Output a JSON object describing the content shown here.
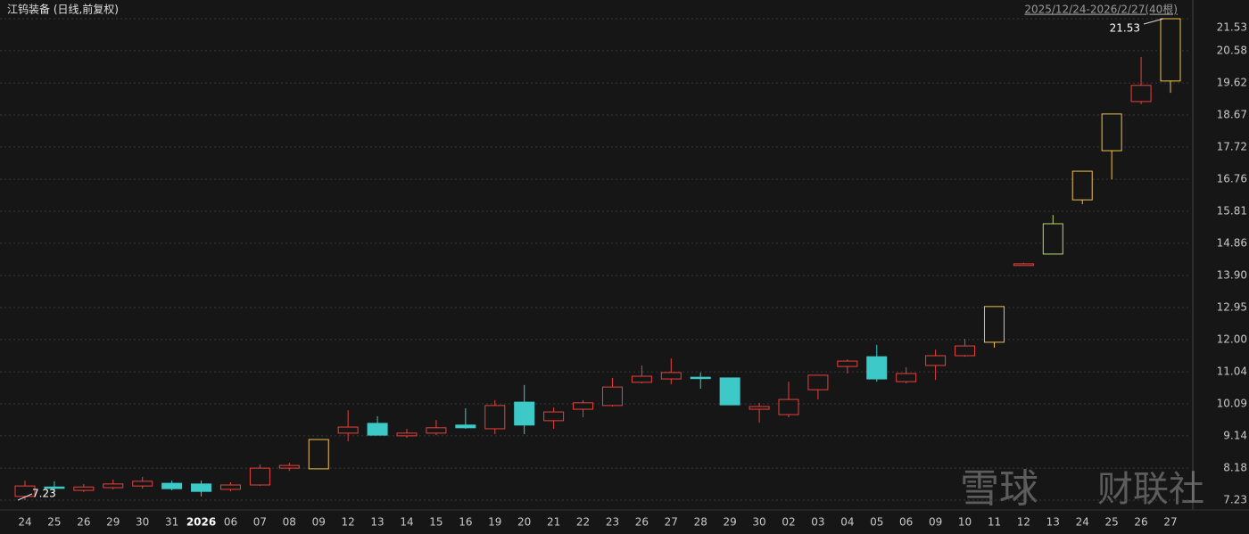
{
  "chart_data": {
    "type": "candlestick",
    "title": "江钨装备 (日线,前复权)",
    "range_label": "2025/12/24-2026/2/27(40根)",
    "watermark": [
      "雪球",
      "财联社"
    ],
    "categories": [
      "24",
      "25",
      "26",
      "29",
      "30",
      "31",
      "2026",
      "06",
      "07",
      "08",
      "09",
      "12",
      "13",
      "14",
      "15",
      "16",
      "19",
      "20",
      "21",
      "22",
      "23",
      "26",
      "27",
      "28",
      "29",
      "30",
      "02",
      "03",
      "04",
      "05",
      "06",
      "09",
      "10",
      "11",
      "12",
      "13",
      "24",
      "25",
      "26",
      "27"
    ],
    "open": [
      7.34,
      7.62,
      7.52,
      7.6,
      7.65,
      7.73,
      7.71,
      7.55,
      7.68,
      8.18,
      8.16,
      9.22,
      9.51,
      9.14,
      9.22,
      9.46,
      9.35,
      10.14,
      9.59,
      9.93,
      10.04,
      10.73,
      10.83,
      10.88,
      10.86,
      9.93,
      9.77,
      10.51,
      11.2,
      11.49,
      10.75,
      11.23,
      11.52,
      11.92,
      14.2,
      14.54,
      16.15,
      17.61,
      19.07,
      19.68
    ],
    "high": [
      7.81,
      7.79,
      7.71,
      7.84,
      7.92,
      7.81,
      7.81,
      7.76,
      8.29,
      8.34,
      9.03,
      9.9,
      9.72,
      9.35,
      9.61,
      9.96,
      10.2,
      10.65,
      9.98,
      10.2,
      10.86,
      11.23,
      11.44,
      11.02,
      10.86,
      10.12,
      10.75,
      10.94,
      11.41,
      11.84,
      11.18,
      11.7,
      12.02,
      12.98,
      14.28,
      15.7,
      17.0,
      18.7,
      20.39,
      21.53
    ],
    "low": [
      7.23,
      7.47,
      7.47,
      7.55,
      7.57,
      7.52,
      7.34,
      7.49,
      7.65,
      8.1,
      8.16,
      8.98,
      9.16,
      9.08,
      9.16,
      9.35,
      9.19,
      9.19,
      9.35,
      9.69,
      10.01,
      10.7,
      10.67,
      10.54,
      10.06,
      9.53,
      9.69,
      10.22,
      10.99,
      10.75,
      10.7,
      10.8,
      11.49,
      11.76,
      14.2,
      14.54,
      16.02,
      16.76,
      18.99,
      19.33
    ],
    "close": [
      7.65,
      7.58,
      7.62,
      7.71,
      7.79,
      7.57,
      7.49,
      7.68,
      8.18,
      8.26,
      9.03,
      9.4,
      9.16,
      9.22,
      9.38,
      9.38,
      10.04,
      9.46,
      9.85,
      10.12,
      10.59,
      10.91,
      11.02,
      10.86,
      10.06,
      10.01,
      10.22,
      10.94,
      11.36,
      10.83,
      10.99,
      11.52,
      11.81,
      12.98,
      14.25,
      15.44,
      17.0,
      18.7,
      19.55,
      21.53
    ],
    "colors": [
      "#e8413c",
      "#3ec9c9",
      "#e8413c",
      "#e8413c",
      "#e8413c",
      "#3ec9c9",
      "#3ec9c9",
      "#e8413c",
      "#e8413c",
      "#e8413c",
      "#f0c24b",
      "#e8413c",
      "#3ec9c9",
      "#e8413c",
      "#e8413c",
      "#3ec9c9",
      "#e8413c",
      "#3ec9c9",
      "#e8413c",
      "#e8413c",
      "#e8413c",
      "#e8413c",
      "#e8413c",
      "#3ec9c9",
      "#3ec9c9",
      "#e8413c",
      "#e8413c",
      "#e8413c",
      "#e8413c",
      "#3ec9c9",
      "#e8413c",
      "#e8413c",
      "#e8413c",
      "#f0c24b",
      "#e8413c",
      "#b5d86a",
      "#f0c24b",
      "#f0c24b",
      "#e8413c",
      "#f0c24b"
    ],
    "ylim": [
      7.23,
      21.53
    ],
    "yticks": [
      7.23,
      8.18,
      9.14,
      10.09,
      11.04,
      {
        "value": 12,
        "label": "12.00"
      },
      12.95,
      {
        "value": 13.9,
        "label": "13.90"
      },
      14.86,
      15.81,
      16.76,
      17.72,
      18.67,
      19.62,
      20.58,
      21.53
    ],
    "grid": true
  }
}
